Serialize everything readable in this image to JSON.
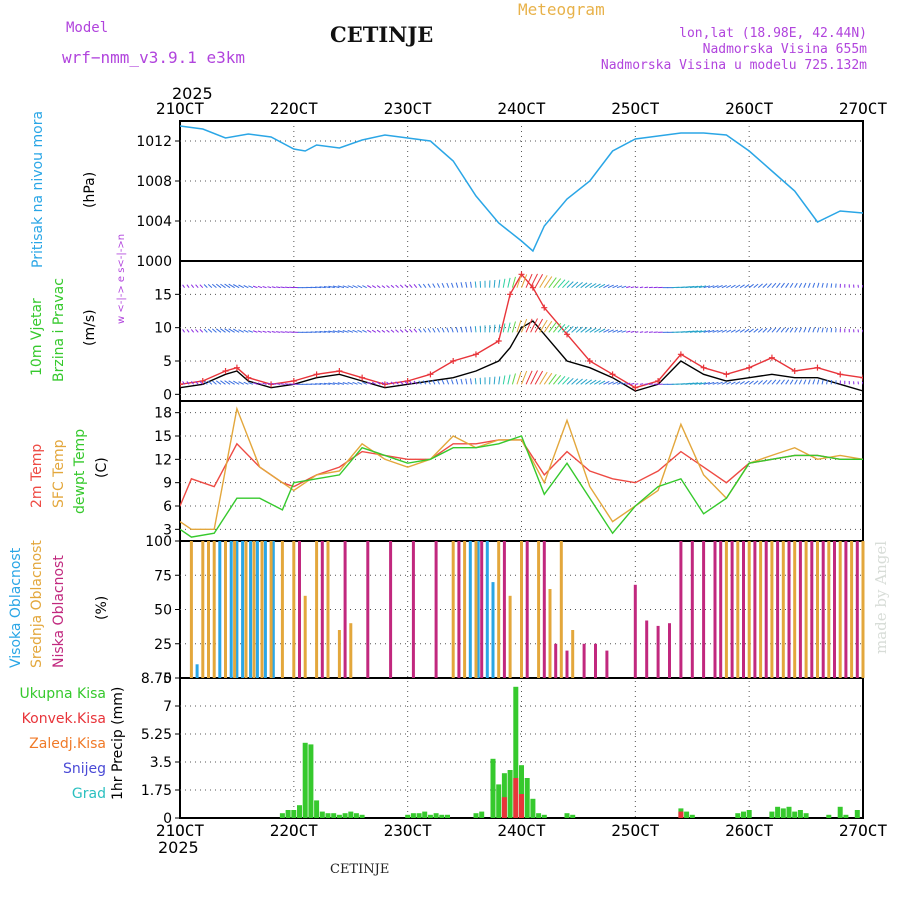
{
  "header": {
    "model_label": "Model",
    "model_name": "wrf−nmm_v3.9.1  e3km",
    "station": "CETINJE",
    "product": "Meteogram",
    "lonlat": "lon,lat (18.98E, 42.44N)",
    "elevation": "Nadmorska Visina 655m",
    "model_elevation": "Nadmorska Visina u modelu 725.132m",
    "footer_station": "CETINJE",
    "credit": "made by Angel"
  },
  "colors": {
    "pressure": "#2aa6e6",
    "wind_black": "#000000",
    "gust": "#e8343a",
    "t2m": "#ee4b44",
    "tsfc": "#e3a73c",
    "tdew": "#36c92d",
    "cloud_high": "#2aa6e6",
    "cloud_mid": "#e3a73c",
    "cloud_low": "#c1287e",
    "rain": "#36c92d",
    "conv": "#e8343a",
    "freezing": "#f07a28",
    "snow": "#4a4ad6",
    "hail": "#2bc0c0",
    "label_purple": "#b144dd",
    "label_orange": "#e8b24a"
  },
  "chart_data": [
    {
      "type": "line",
      "name": "pressure-panel",
      "ylabel_left": "Pritisak na nivou mora",
      "ylabel_unit": "(hPa)",
      "ylim": [
        1000,
        1014
      ],
      "yticks": [
        1004,
        1008,
        1012
      ],
      "bottom_tick": "1000",
      "x_range_days": [
        21,
        27
      ],
      "series": [
        {
          "name": "Pritisak",
          "color": "#2aa6e6",
          "x": [
            21.0,
            21.2,
            21.4,
            21.6,
            21.8,
            22.0,
            22.1,
            22.2,
            22.4,
            22.6,
            22.8,
            23.0,
            23.2,
            23.4,
            23.6,
            23.8,
            24.0,
            24.1,
            24.2,
            24.4,
            24.6,
            24.8,
            25.0,
            25.2,
            25.4,
            25.6,
            25.8,
            26.0,
            26.2,
            26.4,
            26.6,
            26.8,
            27.0
          ],
          "values": [
            1013.5,
            1013.2,
            1012.3,
            1012.7,
            1012.4,
            1011.2,
            1011.0,
            1011.6,
            1011.3,
            1012.1,
            1012.6,
            1012.3,
            1012.0,
            1010.0,
            1006.5,
            1003.8,
            1002.0,
            1001.0,
            1003.5,
            1006.2,
            1008.0,
            1011.0,
            1012.2,
            1012.5,
            1012.8,
            1012.8,
            1012.6,
            1011.0,
            1009.0,
            1007.0,
            1003.9,
            1005.0,
            1004.8
          ]
        }
      ]
    },
    {
      "type": "line",
      "name": "wind-panel",
      "ylabel_left1": "10m Vjetar",
      "ylabel_left2": "Brzina i Pravac",
      "ylabel_unit": "(m/s)",
      "dir_label": "w <-|-> e  s<-|->n",
      "ylim": [
        -1,
        20
      ],
      "yticks": [
        0,
        5,
        10,
        15
      ],
      "x_range_days": [
        21,
        27
      ],
      "series": [
        {
          "name": "Brzina vjetra",
          "color": "#000000",
          "x": [
            21.0,
            21.2,
            21.4,
            21.5,
            21.6,
            21.8,
            22.0,
            22.2,
            22.4,
            22.6,
            22.8,
            23.0,
            23.2,
            23.4,
            23.6,
            23.8,
            23.9,
            24.0,
            24.1,
            24.2,
            24.4,
            24.6,
            24.8,
            25.0,
            25.2,
            25.4,
            25.6,
            25.8,
            26.0,
            26.2,
            26.4,
            26.6,
            26.8,
            27.0
          ],
          "values": [
            1.0,
            1.5,
            3.0,
            3.5,
            2.0,
            1.0,
            1.5,
            2.5,
            3.0,
            2.0,
            1.0,
            1.5,
            2.0,
            2.5,
            3.5,
            5.0,
            7.0,
            10.0,
            11.0,
            9.0,
            5.0,
            4.0,
            2.5,
            0.5,
            1.5,
            5.0,
            3.0,
            2.0,
            2.5,
            3.0,
            2.5,
            2.5,
            1.5,
            0.5
          ]
        },
        {
          "name": "Udari",
          "color": "#e8343a",
          "x": [
            21.0,
            21.2,
            21.4,
            21.5,
            21.6,
            21.8,
            22.0,
            22.2,
            22.4,
            22.6,
            22.8,
            23.0,
            23.2,
            23.4,
            23.6,
            23.8,
            23.9,
            24.0,
            24.1,
            24.2,
            24.4,
            24.6,
            24.8,
            25.0,
            25.2,
            25.4,
            25.6,
            25.8,
            26.0,
            26.2,
            26.4,
            26.6,
            26.8,
            27.0
          ],
          "values": [
            1.5,
            2.0,
            3.5,
            4.0,
            2.5,
            1.5,
            2.0,
            3.0,
            3.5,
            2.5,
            1.5,
            2.0,
            3.0,
            5.0,
            6.0,
            8.0,
            15.0,
            18.0,
            16.0,
            13.0,
            9.0,
            5.0,
            3.0,
            1.0,
            2.0,
            6.0,
            4.0,
            3.0,
            4.0,
            5.5,
            3.5,
            4.0,
            3.0,
            2.5
          ]
        }
      ]
    },
    {
      "type": "line",
      "name": "temperature-panel",
      "ylabel_left1": "2m Temp",
      "ylabel_left2": "SFC Temp",
      "ylabel_left3": "dewpt Temp",
      "ylabel_unit": "(C)",
      "ylim": [
        1.5,
        19.5
      ],
      "yticks": [
        3,
        6,
        9,
        12,
        15,
        18
      ],
      "x_range_days": [
        21,
        27
      ],
      "series": [
        {
          "name": "2m Temp",
          "color": "#ee4b44",
          "x": [
            21.0,
            21.1,
            21.3,
            21.5,
            21.7,
            21.9,
            22.0,
            22.2,
            22.4,
            22.6,
            22.8,
            23.0,
            23.2,
            23.4,
            23.6,
            23.8,
            24.0,
            24.2,
            24.4,
            24.6,
            24.8,
            25.0,
            25.2,
            25.4,
            25.6,
            25.8,
            26.0,
            26.2,
            26.4,
            26.6,
            26.8,
            27.0
          ],
          "values": [
            6.0,
            9.5,
            8.5,
            14.0,
            11.0,
            9.0,
            8.5,
            10.0,
            11.0,
            13.0,
            12.5,
            12.0,
            12.0,
            14.0,
            14.0,
            14.5,
            14.5,
            10.0,
            13.0,
            10.5,
            9.5,
            9.0,
            10.5,
            13.0,
            11.0,
            9.0,
            11.5,
            12.0,
            12.5,
            12.5,
            12.0,
            12.0
          ]
        },
        {
          "name": "SFC Temp",
          "color": "#e3a73c",
          "x": [
            21.0,
            21.1,
            21.3,
            21.5,
            21.7,
            21.9,
            22.0,
            22.2,
            22.4,
            22.6,
            22.8,
            23.0,
            23.2,
            23.4,
            23.6,
            23.8,
            24.0,
            24.2,
            24.4,
            24.6,
            24.8,
            25.0,
            25.2,
            25.4,
            25.6,
            25.8,
            26.0,
            26.2,
            26.4,
            26.6,
            26.8,
            27.0
          ],
          "values": [
            4.0,
            3.0,
            3.0,
            18.5,
            11.0,
            9.0,
            8.0,
            10.0,
            10.5,
            14.0,
            12.0,
            11.0,
            12.0,
            15.0,
            13.5,
            14.5,
            14.5,
            9.0,
            17.0,
            8.5,
            4.0,
            6.0,
            8.0,
            16.5,
            10.0,
            7.0,
            11.5,
            12.5,
            13.5,
            12.0,
            12.5,
            12.0
          ]
        },
        {
          "name": "dewpt Temp",
          "color": "#36c92d",
          "x": [
            21.0,
            21.1,
            21.3,
            21.5,
            21.7,
            21.9,
            22.0,
            22.2,
            22.4,
            22.6,
            22.8,
            23.0,
            23.2,
            23.4,
            23.6,
            23.8,
            24.0,
            24.2,
            24.4,
            24.6,
            24.8,
            25.0,
            25.2,
            25.4,
            25.6,
            25.8,
            26.0,
            26.2,
            26.4,
            26.6,
            26.8,
            27.0
          ],
          "values": [
            3.0,
            2.0,
            2.5,
            7.0,
            7.0,
            5.5,
            9.0,
            9.5,
            10.0,
            13.5,
            12.5,
            11.5,
            12.0,
            13.5,
            13.5,
            14.0,
            15.0,
            7.5,
            11.5,
            7.0,
            2.5,
            6.0,
            8.5,
            9.5,
            5.0,
            7.0,
            11.5,
            12.0,
            12.5,
            12.5,
            12.0,
            12.0
          ]
        }
      ]
    },
    {
      "type": "bar",
      "name": "cloud-panel",
      "ylabel_left1": "Visoka Oblacnost",
      "ylabel_left2": "Srednja Oblacnost",
      "ylabel_left3": "Niska Oblacnost",
      "ylabel_unit": "(%)",
      "ylim": [
        0,
        100
      ],
      "yticks": [
        0,
        25,
        50,
        75,
        100
      ],
      "x_range_days": [
        21,
        27
      ],
      "series": [
        {
          "name": "Visoka Oblacnost",
          "color": "#2aa6e6",
          "x": [
            21.15,
            21.35,
            21.45,
            21.5,
            21.55,
            21.62,
            21.68,
            21.75,
            21.82,
            23.55,
            23.62,
            23.7,
            23.75
          ],
          "values": [
            10,
            100,
            100,
            100,
            100,
            100,
            100,
            100,
            100,
            100,
            100,
            100,
            70
          ]
        },
        {
          "name": "Srednja Oblacnost",
          "color": "#e3a73c",
          "x": [
            21.1,
            21.2,
            21.25,
            21.3,
            21.4,
            21.48,
            21.58,
            21.65,
            21.72,
            21.8,
            21.9,
            22.0,
            22.1,
            22.2,
            22.3,
            22.4,
            22.5,
            23.4,
            23.5,
            23.6,
            23.8,
            23.9,
            24.0,
            24.15,
            24.25,
            24.35,
            24.45,
            25.8,
            25.9,
            26.0,
            26.1,
            26.2,
            26.3,
            26.4,
            26.5,
            26.6,
            26.7,
            26.8,
            26.9,
            27.0
          ],
          "values": [
            100,
            100,
            100,
            100,
            100,
            100,
            100,
            100,
            100,
            100,
            100,
            100,
            60,
            100,
            100,
            35,
            40,
            100,
            100,
            100,
            100,
            60,
            100,
            100,
            65,
            100,
            35,
            100,
            100,
            100,
            100,
            100,
            100,
            100,
            100,
            100,
            100,
            100,
            100,
            100
          ]
        },
        {
          "name": "Niska Oblacnost",
          "color": "#c1287e",
          "x": [
            22.05,
            22.25,
            22.45,
            22.65,
            22.85,
            23.05,
            23.25,
            23.45,
            23.65,
            23.85,
            24.05,
            24.2,
            24.3,
            24.4,
            24.55,
            24.65,
            24.75,
            25.0,
            25.1,
            25.2,
            25.3,
            25.4,
            25.5,
            25.6,
            25.7,
            25.75,
            25.85,
            25.95,
            26.05,
            26.15,
            26.25,
            26.35,
            26.45,
            26.55,
            26.65,
            26.75,
            26.85,
            26.95
          ],
          "values": [
            100,
            100,
            100,
            100,
            100,
            100,
            100,
            100,
            100,
            100,
            100,
            100,
            25,
            20,
            25,
            25,
            20,
            68,
            42,
            38,
            40,
            100,
            100,
            100,
            100,
            100,
            100,
            100,
            100,
            100,
            100,
            100,
            100,
            100,
            100,
            100,
            100,
            100
          ]
        }
      ]
    },
    {
      "type": "bar",
      "name": "precip-panel",
      "ylabel_unit": "1hr Precip (mm)",
      "ylim": [
        0,
        8.75
      ],
      "yticks": [
        0,
        1.75,
        3.5,
        5.25,
        7,
        8.75
      ],
      "x_range_days": [
        21,
        27
      ],
      "legend": [
        "Ukupna Kisa",
        "Konvek.Kisa",
        "Zaledj.Kisa",
        "Snijeg",
        "Grad"
      ],
      "series": [
        {
          "name": "Ukupna Kisa",
          "color": "#36c92d",
          "x": [
            21.9,
            21.95,
            22.0,
            22.05,
            22.1,
            22.15,
            22.2,
            22.25,
            22.3,
            22.35,
            22.4,
            22.45,
            22.5,
            22.55,
            22.6,
            23.0,
            23.05,
            23.1,
            23.15,
            23.2,
            23.25,
            23.3,
            23.35,
            23.6,
            23.65,
            23.75,
            23.8,
            23.85,
            23.9,
            23.95,
            24.0,
            24.05,
            24.1,
            24.15,
            24.2,
            24.4,
            24.45,
            25.4,
            25.45,
            25.5,
            25.9,
            25.95,
            26.0,
            26.2,
            26.25,
            26.3,
            26.35,
            26.4,
            26.45,
            26.5,
            26.7,
            26.8,
            26.85,
            26.95
          ],
          "values": [
            0.3,
            0.5,
            0.5,
            0.8,
            4.7,
            4.6,
            1.1,
            0.4,
            0.3,
            0.3,
            0.2,
            0.3,
            0.4,
            0.3,
            0.2,
            0.2,
            0.3,
            0.3,
            0.4,
            0.2,
            0.3,
            0.2,
            0.2,
            0.3,
            0.4,
            3.7,
            2.1,
            2.8,
            3.0,
            8.2,
            3.3,
            2.5,
            1.2,
            0.3,
            0.2,
            0.3,
            0.2,
            0.6,
            0.4,
            0.2,
            0.3,
            0.4,
            0.5,
            0.4,
            0.7,
            0.6,
            0.7,
            0.4,
            0.5,
            0.3,
            0.2,
            0.7,
            0.2,
            0.5
          ]
        },
        {
          "name": "Konvek.Kisa",
          "color": "#e8343a",
          "x": [
            23.85,
            23.95,
            24.0,
            25.4
          ],
          "values": [
            1.3,
            2.5,
            1.5,
            0.4
          ]
        }
      ]
    }
  ],
  "x_axis": {
    "year": "2025",
    "ticks": [
      "21OCT",
      "22OCT",
      "23OCT",
      "24OCT",
      "25OCT",
      "26OCT",
      "27OCT"
    ]
  }
}
